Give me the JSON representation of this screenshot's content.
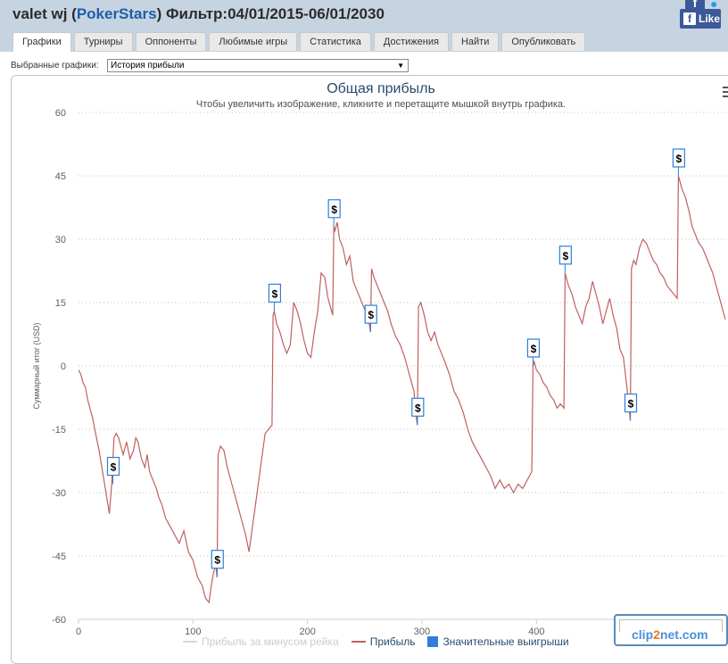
{
  "header": {
    "player": "valet wj",
    "site": "PokerStars",
    "filter": "Фильтр:04/01/2015-06/01/2030"
  },
  "social": {
    "like_label": "Like",
    "fb_icon": "facebook-icon",
    "tw_icon": "twitter-icon"
  },
  "tabs": [
    {
      "label": "Графики",
      "active": true
    },
    {
      "label": "Турниры"
    },
    {
      "label": "Оппоненты"
    },
    {
      "label": "Любимые игры"
    },
    {
      "label": "Статистика"
    },
    {
      "label": "Достижения"
    },
    {
      "label": "Найти"
    },
    {
      "label": "Опубликовать"
    }
  ],
  "selector": {
    "label": "Выбранные графики:",
    "value": "История прибыли"
  },
  "legend": [
    {
      "label": "Прибыль за минусом рейка",
      "color": "#d7d7d7"
    },
    {
      "label": "Прибыль",
      "color": "#c06060"
    },
    {
      "label": "Значительные выигрыши",
      "color": "#2f7ed8"
    }
  ],
  "watermark": {
    "prefix": "clip",
    "accent": "2",
    "suffix": "net.com"
  },
  "chart_data": {
    "type": "line",
    "title": "Общая прибыль",
    "subtitle": "Чтобы увеличить изображение, кликните и перетащите мышкой внутрь графика.",
    "ylabel": "Суммарный итог (USD)",
    "xlabel": "",
    "ylim": [
      -60,
      60
    ],
    "yticks": [
      60,
      45,
      30,
      15,
      0,
      -15,
      -30,
      -45,
      -60
    ],
    "xticks": [
      0,
      100,
      200,
      300,
      400
    ],
    "xlim": [
      0,
      565
    ],
    "grid": true,
    "series": [
      {
        "name": "Прибыль",
        "color": "#c06060",
        "x": [
          0,
          2,
          4,
          6,
          8,
          10,
          12,
          15,
          18,
          21,
          24,
          27,
          29,
          31,
          33,
          35,
          37,
          39,
          42,
          45,
          48,
          50,
          52,
          55,
          58,
          60,
          62,
          65,
          68,
          70,
          73,
          76,
          80,
          84,
          88,
          92,
          96,
          100,
          104,
          108,
          111,
          114,
          116,
          118,
          120,
          121,
          122,
          124,
          127,
          130,
          134,
          138,
          142,
          146,
          149,
          152,
          156,
          160,
          163,
          166,
          169,
          170,
          171,
          173,
          176,
          179,
          182,
          185,
          188,
          191,
          194,
          197,
          200,
          203,
          206,
          209,
          212,
          215,
          218,
          220,
          222,
          223,
          224,
          226,
          228,
          231,
          234,
          237,
          240,
          243,
          246,
          249,
          252,
          254,
          255,
          256,
          258,
          261,
          264,
          267,
          270,
          273,
          277,
          281,
          285,
          289,
          293,
          295,
          296,
          297,
          299,
          302,
          305,
          308,
          311,
          314,
          317,
          320,
          324,
          328,
          332,
          336,
          340,
          344,
          348,
          352,
          356,
          360,
          364,
          368,
          372,
          376,
          380,
          384,
          388,
          392,
          394,
          396,
          397,
          398,
          400,
          403,
          406,
          409,
          412,
          415,
          418,
          421,
          424,
          425,
          426,
          428,
          431,
          434,
          437,
          440,
          443,
          446,
          449,
          452,
          455,
          458,
          461,
          464,
          467,
          470,
          473,
          476,
          479,
          481,
          482,
          483,
          485,
          487,
          490,
          493,
          496,
          499,
          502,
          505,
          508,
          511,
          514,
          517,
          520,
          523,
          524,
          525,
          527,
          530,
          533,
          536,
          539,
          542,
          545,
          548,
          551,
          554,
          557,
          560,
          563,
          565
        ],
        "values": [
          -1,
          -2,
          -4,
          -5,
          -8,
          -10,
          -12,
          -16,
          -20,
          -25,
          -30,
          -35,
          -28,
          -17,
          -16,
          -17,
          -19,
          -21,
          -18,
          -22,
          -20,
          -17,
          -18,
          -22,
          -24,
          -21,
          -25,
          -27,
          -29,
          -31,
          -33,
          -36,
          -38,
          -40,
          -42,
          -39,
          -44,
          -46,
          -50,
          -52,
          -55,
          -56,
          -52,
          -49,
          -47,
          -50,
          -21,
          -19,
          -20,
          -24,
          -28,
          -32,
          -36,
          -40,
          -44,
          -38,
          -30,
          -22,
          -16,
          -15,
          -14,
          12,
          13,
          10,
          8,
          5,
          3,
          5,
          15,
          13,
          10,
          6,
          3,
          2,
          8,
          13,
          22,
          21,
          16,
          14,
          12,
          33,
          32,
          34,
          30,
          28,
          24,
          26,
          20,
          18,
          16,
          14,
          12,
          10,
          8,
          23,
          21,
          19,
          17,
          15,
          13,
          10,
          7,
          5,
          2,
          -2,
          -6,
          -12,
          -14,
          14,
          15,
          12,
          8,
          6,
          8,
          5,
          3,
          1,
          -2,
          -6,
          -8,
          -11,
          -15,
          -18,
          -20,
          -22,
          -24,
          -26,
          -29,
          -27,
          -29,
          -28,
          -30,
          -28,
          -29,
          -27,
          -26,
          -25,
          0,
          1,
          -1,
          -2,
          -4,
          -5,
          -7,
          -8,
          -10,
          -9,
          -10,
          22,
          21,
          19,
          17,
          14,
          12,
          10,
          14,
          16,
          20,
          17,
          14,
          10,
          13,
          16,
          12,
          9,
          4,
          2,
          -5,
          -10,
          -13,
          23,
          25,
          24,
          28,
          30,
          29,
          27,
          25,
          24,
          22,
          21,
          19,
          18,
          17,
          16,
          45,
          44,
          42,
          40,
          37,
          33,
          31,
          29,
          28,
          26,
          24,
          22,
          19,
          16,
          13,
          11
        ]
      }
    ],
    "big_win_markers": {
      "label": "$",
      "x": [
        30,
        121,
        171,
        223,
        255,
        296,
        397,
        425,
        482,
        524
      ]
    }
  }
}
